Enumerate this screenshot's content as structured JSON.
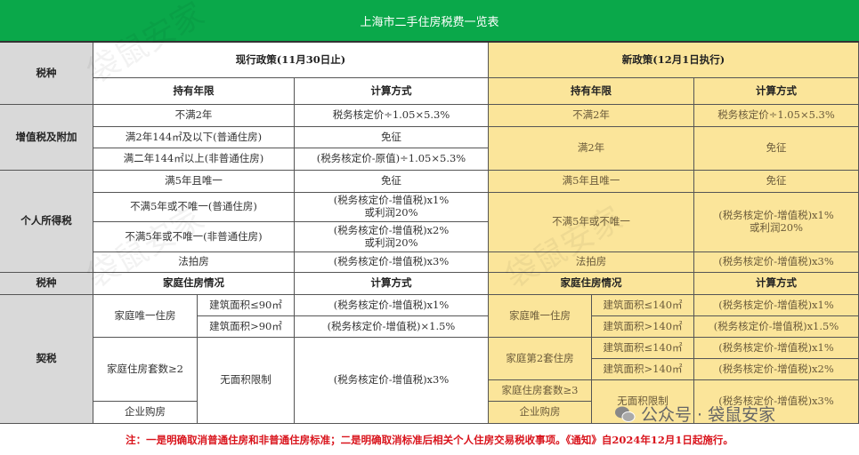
{
  "title": "上海市二手住房税费一览表",
  "header": {
    "tax_type": "税种",
    "current": "现行政策(11月30日止)",
    "new": "新政策(12月1日执行)",
    "holding": "持有年限",
    "calc": "计算方式",
    "family": "家庭住房情况"
  },
  "vat": {
    "label": "增值税及附加",
    "current": [
      [
        "不满2年",
        "税务核定价÷1.05×5.3%"
      ],
      [
        "满2年144㎡及以下(普通住房)",
        "免征"
      ],
      [
        "满二年144㎡以上(非普通住房)",
        "(税务核定价-原值)÷1.05×5.3%"
      ]
    ],
    "new": [
      [
        "不满2年",
        "税务核定价÷1.05×5.3%"
      ],
      [
        "满2年",
        "免征"
      ]
    ]
  },
  "iit": {
    "label": "个人所得税",
    "current": [
      [
        "满5年且唯一",
        "免征"
      ],
      [
        "不满5年或不唯一(普通住房)",
        "(税务核定价-增值税)x1%",
        "或利润20%"
      ],
      [
        "不满5年或不唯一(非普通住房)",
        "(税务核定价-增值税)x2%",
        "或利润20%"
      ],
      [
        "法拍房",
        "(税务核定价-增值税)x3%"
      ]
    ],
    "new": [
      [
        "满5年且唯一",
        "免征"
      ],
      [
        "不满5年或不唯一",
        "(税务核定价-增值税)x1%",
        "或利润20%"
      ],
      [
        "法拍房",
        "(税务核定价-增值税)x3%"
      ]
    ]
  },
  "deed": {
    "label": "契税",
    "current": {
      "only": "家庭唯一住房",
      "a1": "建筑面积≤90㎡",
      "c1": "(税务核定价-增值税)x1%",
      "a2": "建筑面积>90㎡",
      "c2": "(税务核定价-增值税)×1.5%",
      "multi": "家庭住房套数≥2",
      "corp": "企业购房",
      "nolimit": "无面积限制",
      "c3": "(税务核定价-增值税)x3%"
    },
    "new": {
      "only": "家庭唯一住房",
      "a1": "建筑面积≤140㎡",
      "c1": "(税务核定价-增值税)x1%",
      "a2": "建筑面积>140㎡",
      "c2": "(税务核定价-增值税)x1.5%",
      "second": "家庭第2套住房",
      "a3": "建筑面积≤140㎡",
      "c3": "(税务核定价-增值税)x1%",
      "a4": "建筑面积>140㎡",
      "c4": "(税务核定价-增值税)x2%",
      "multi": "家庭住房套数≥3",
      "corp": "企业购房",
      "nolimit": "无面积限制",
      "c5": "(税务核定价-增值税)x3%"
    }
  },
  "footnote": "注：一是明确取消普通住房和非普通住房标准；二是明确取消标准后相关个人住房交易税收事项。《通知》自2024年12月1日起施行。",
  "watermark": "公众号 · 袋鼠安家",
  "watermark_bg": "袋鼠安家",
  "colors": {
    "header": "#0aa84a",
    "gray": "#d9d9d9",
    "new_policy": "#fbe59a",
    "note": "#d9141c"
  }
}
